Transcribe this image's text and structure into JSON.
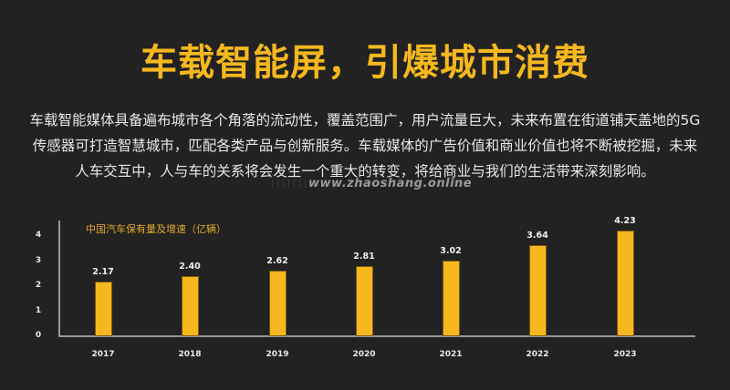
{
  "header": {
    "title": "车载智能屏，引爆城市消费"
  },
  "body": {
    "lines": [
      "车载智能媒体具备遍布城市各个角落的流动性，覆盖范围广，用户流量巨大，未来布置在街道铺天盖地的5G",
      "传感器可打造智慧城市，匹配各类产品与创新服务。车载媒体的广告价值和商业价值也将不断被挖掘，未来",
      "人车交互中，人与车的关系将会发生一个重大的转变，将给商业与我们的生活带来深刻影响。"
    ],
    "watermark": "www.zhaoshang.online"
  },
  "colors": {
    "background": "#222222",
    "accent": "#f6b81e",
    "text": "#e8e8e8"
  },
  "chart_data": {
    "type": "bar",
    "title": "中国汽车保有量及增速（亿辆）",
    "categories": [
      "2017",
      "2018",
      "2019",
      "2020",
      "2021",
      "2022",
      "2023"
    ],
    "values": [
      2.17,
      2.4,
      2.62,
      2.81,
      3.02,
      3.64,
      4.23
    ],
    "value_labels": [
      "2.17",
      "2.40",
      "2.62",
      "2.81",
      "3.02",
      "3.64",
      "4.23"
    ],
    "xlabel": "",
    "ylabel": "",
    "yticks": [
      "0",
      "1",
      "2",
      "3",
      "4"
    ],
    "ylim": [
      0,
      4.5
    ],
    "grid": false,
    "legend": "none",
    "bar_color": "#f6b81e"
  }
}
